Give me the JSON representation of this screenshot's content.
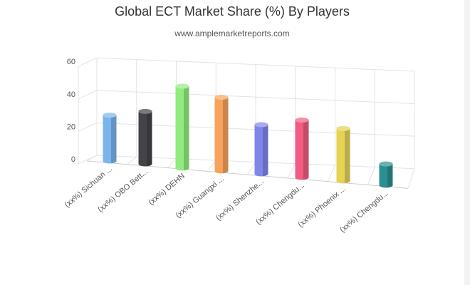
{
  "chart_data": {
    "type": "bar",
    "style": "3d-cylinder",
    "title": "Global ECT Market Share (%) By Players",
    "subtitle": "www.amplemarketreports.com",
    "categories": [
      "(xx%) Sichuan ...",
      "(xx%) OBO Bett...",
      "(xx%) DEHN",
      "(xx%) Guangxi ...",
      "(xx%) Shenzhe...",
      "(xx%) Chengdu...",
      "(xx%) Phoenix ...",
      "(xx%) Chengdu..."
    ],
    "values": [
      28,
      32,
      50,
      45,
      30,
      35,
      32,
      13
    ],
    "colors": [
      "#7cb5ec",
      "#434348",
      "#90ed7d",
      "#f7a35c",
      "#8085e9",
      "#f15c80",
      "#e4d354",
      "#2b908f"
    ],
    "ylim": [
      0,
      60
    ],
    "yticks": [
      0,
      20,
      40,
      60
    ],
    "grid": true,
    "legend": "none"
  }
}
